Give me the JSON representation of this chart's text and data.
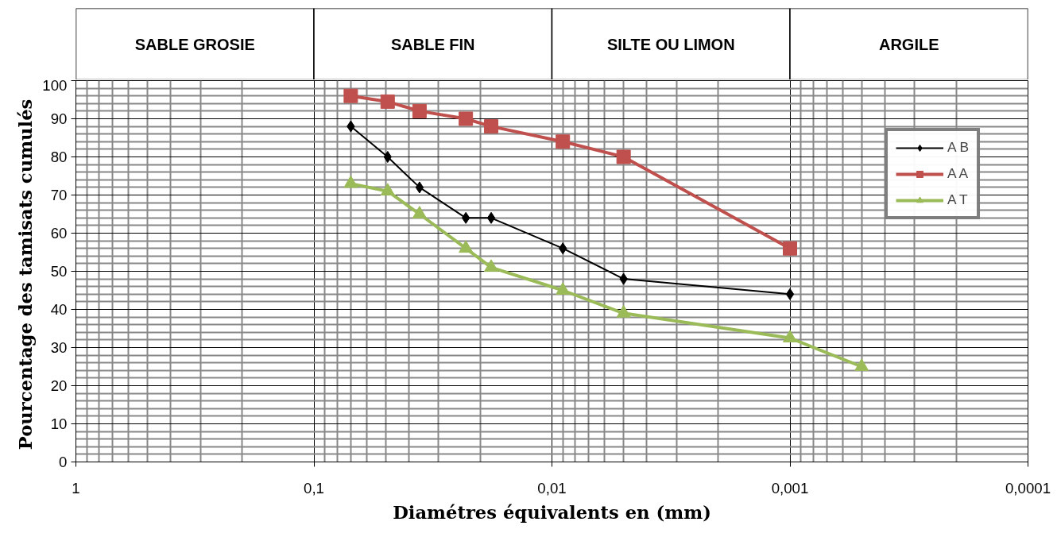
{
  "chart_data": [
    {
      "type": "other",
      "categories": [
        "SABLE GROSIE",
        "SABLE FIN",
        "SILTE OU LIMON",
        "ARGILE"
      ]
    },
    {
      "type": "line",
      "xlabel": "Diamétres équivalents en (mm)",
      "ylabel": "Pourcentage des  tamisats cumulés",
      "log": "x",
      "xlim": [
        1,
        0.0001
      ],
      "xticks": [
        {
          "value": 1,
          "label": "1"
        },
        {
          "value": 0.1,
          "label": "0,1"
        },
        {
          "value": 0.01,
          "label": "0,01"
        },
        {
          "value": 0.001,
          "label": "0,001"
        },
        {
          "value": 0.0001,
          "label": "0,0001"
        }
      ],
      "ylim": [
        0,
        100
      ],
      "yticks": [
        0,
        10,
        20,
        30,
        40,
        50,
        60,
        70,
        80,
        90,
        100
      ],
      "grid": true,
      "legend": "top right",
      "series": [
        {
          "name": "A B",
          "color": "#000000",
          "marker": "diamond",
          "x": [
            0.07,
            0.049,
            0.036,
            0.023,
            0.018,
            0.009,
            0.005,
            0.001
          ],
          "values": [
            88,
            80,
            72,
            64,
            64,
            56,
            48,
            44
          ]
        },
        {
          "name": "A A",
          "color": "#c0504d",
          "marker": "square",
          "x": [
            0.07,
            0.049,
            0.036,
            0.023,
            0.018,
            0.009,
            0.005,
            0.001
          ],
          "values": [
            96,
            94.5,
            92,
            90,
            88,
            84,
            80,
            56
          ]
        },
        {
          "name": "A T",
          "color": "#9bbb59",
          "marker": "triangle",
          "x": [
            0.07,
            0.049,
            0.036,
            0.023,
            0.018,
            0.009,
            0.005,
            0.001,
            0.0005
          ],
          "values": [
            73,
            71,
            65,
            56,
            51,
            45,
            39,
            32.5,
            25
          ]
        }
      ]
    }
  ]
}
